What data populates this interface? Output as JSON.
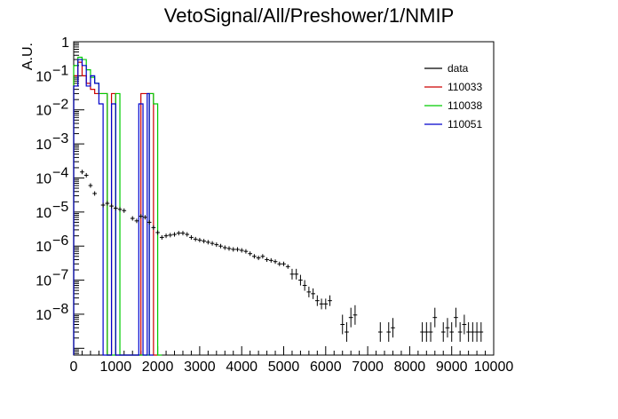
{
  "chart_data": {
    "type": "line",
    "title": "VetoSignal/All/Preshower/1/NMIP",
    "xlabel": "",
    "ylabel": "A.U.",
    "xlim": [
      0,
      10000
    ],
    "ylim_exponent": [
      -9.2,
      0
    ],
    "yscale": "log",
    "x_ticks": [
      "0",
      "1000",
      "2000",
      "3000",
      "4000",
      "5000",
      "6000",
      "7000",
      "8000",
      "9000",
      "10000"
    ],
    "y_ticks": [
      {
        "base": "1",
        "exp": ""
      },
      {
        "base": "10",
        "exp": "−1"
      },
      {
        "base": "10",
        "exp": "−2"
      },
      {
        "base": "10",
        "exp": "−3"
      },
      {
        "base": "10",
        "exp": "−4"
      },
      {
        "base": "10",
        "exp": "−5"
      },
      {
        "base": "10",
        "exp": "−6"
      },
      {
        "base": "10",
        "exp": "−7"
      },
      {
        "base": "10",
        "exp": "−8"
      }
    ],
    "legend": {
      "placement": "top-right",
      "entries": [
        {
          "name": "data",
          "color": "#000000"
        },
        {
          "name": "110033",
          "color": "#cc0000"
        },
        {
          "name": "110038",
          "color": "#00cc00"
        },
        {
          "name": "110051",
          "color": "#0000cc"
        }
      ]
    },
    "series": [
      {
        "name": "110033",
        "color": "#cc0000",
        "style": "step",
        "points": [
          [
            0,
            0.1
          ],
          [
            100,
            0.25
          ],
          [
            200,
            0.1
          ],
          [
            300,
            0.06
          ],
          [
            400,
            0.04
          ],
          [
            500,
            0.03
          ],
          [
            600,
            0.03
          ],
          [
            700,
            0.03
          ],
          [
            800,
            1e-10
          ],
          [
            900,
            0.03
          ],
          [
            1000,
            1e-10
          ],
          [
            1500,
            1e-10
          ],
          [
            1600,
            0.03
          ],
          [
            1700,
            0.03
          ],
          [
            1800,
            0.03
          ],
          [
            1900,
            1e-10
          ]
        ]
      },
      {
        "name": "110038",
        "color": "#00cc00",
        "style": "step",
        "points": [
          [
            0,
            0.2
          ],
          [
            100,
            0.35
          ],
          [
            200,
            0.3
          ],
          [
            300,
            0.15
          ],
          [
            400,
            0.09
          ],
          [
            500,
            0.06
          ],
          [
            600,
            0.03
          ],
          [
            700,
            0.03
          ],
          [
            800,
            1e-10
          ],
          [
            1000,
            0.03
          ],
          [
            1100,
            1e-10
          ],
          [
            1700,
            1e-10
          ],
          [
            1800,
            0.03
          ],
          [
            1900,
            0.015
          ],
          [
            2000,
            1e-10
          ]
        ]
      },
      {
        "name": "110051",
        "color": "#0000cc",
        "style": "step",
        "points": [
          [
            0,
            0.05
          ],
          [
            100,
            0.3
          ],
          [
            200,
            0.2
          ],
          [
            300,
            0.05
          ],
          [
            400,
            0.1
          ],
          [
            500,
            0.06
          ],
          [
            600,
            0.015
          ],
          [
            700,
            1e-10
          ],
          [
            900,
            0.015
          ],
          [
            1000,
            1e-10
          ],
          [
            1500,
            1e-10
          ],
          [
            1550,
            0.015
          ],
          [
            1650,
            1e-10
          ],
          [
            1750,
            0.03
          ],
          [
            1800,
            1e-10
          ]
        ]
      },
      {
        "name": "data",
        "color": "#000000",
        "style": "errorbar",
        "points": [
          [
            200,
            0.00015
          ],
          [
            300,
            0.00012
          ],
          [
            400,
            6e-05
          ],
          [
            500,
            3.5e-05
          ],
          [
            700,
            1.6e-05
          ],
          [
            800,
            1.8e-05
          ],
          [
            900,
            1.5e-05
          ],
          [
            1000,
            1.3e-05
          ],
          [
            1100,
            1.2e-05
          ],
          [
            1200,
            1.1e-05
          ],
          [
            1400,
            6.5e-06
          ],
          [
            1500,
            5.5e-06
          ],
          [
            1600,
            7.5e-06
          ],
          [
            1700,
            7e-06
          ],
          [
            1800,
            5e-06
          ],
          [
            1900,
            3.5e-06
          ],
          [
            2000,
            2.5e-06
          ],
          [
            2100,
            1.8e-06
          ],
          [
            2200,
            2e-06
          ],
          [
            2300,
            2.1e-06
          ],
          [
            2400,
            2.2e-06
          ],
          [
            2500,
            2.4e-06
          ],
          [
            2600,
            2.4e-06
          ],
          [
            2700,
            2.2e-06
          ],
          [
            2800,
            1.8e-06
          ],
          [
            2900,
            1.6e-06
          ],
          [
            3000,
            1.5e-06
          ],
          [
            3100,
            1.4e-06
          ],
          [
            3200,
            1.3e-06
          ],
          [
            3300,
            1.2e-06
          ],
          [
            3400,
            1.1e-06
          ],
          [
            3500,
            1e-06
          ],
          [
            3600,
            9e-07
          ],
          [
            3700,
            8.5e-07
          ],
          [
            3800,
            8e-07
          ],
          [
            3900,
            8e-07
          ],
          [
            4000,
            7.5e-07
          ],
          [
            4100,
            7e-07
          ],
          [
            4200,
            6e-07
          ],
          [
            4300,
            5e-07
          ],
          [
            4400,
            4.5e-07
          ],
          [
            4500,
            5e-07
          ],
          [
            4600,
            4e-07
          ],
          [
            4700,
            3.8e-07
          ],
          [
            4800,
            3.5e-07
          ],
          [
            4900,
            3e-07
          ],
          [
            5000,
            3e-07
          ],
          [
            5100,
            2.5e-07
          ],
          [
            5200,
            1.5e-07
          ],
          [
            5300,
            1.5e-07
          ],
          [
            5400,
            1e-07
          ],
          [
            5500,
            7e-08
          ],
          [
            5600,
            4.5e-08
          ],
          [
            5700,
            4e-08
          ],
          [
            5800,
            2.5e-08
          ],
          [
            5900,
            2e-08
          ],
          [
            6000,
            2e-08
          ],
          [
            6100,
            2.5e-08
          ],
          [
            6400,
            5e-09
          ],
          [
            6500,
            3e-09
          ],
          [
            6600,
            8e-09
          ],
          [
            6700,
            9.5e-09
          ],
          [
            7300,
            3e-09
          ],
          [
            7500,
            3e-09
          ],
          [
            7600,
            4e-09
          ],
          [
            8300,
            3e-09
          ],
          [
            8400,
            3e-09
          ],
          [
            8500,
            3e-09
          ],
          [
            8600,
            8e-09
          ],
          [
            8800,
            3e-09
          ],
          [
            8900,
            4e-09
          ],
          [
            9000,
            3e-09
          ],
          [
            9100,
            8e-09
          ],
          [
            9200,
            3e-09
          ],
          [
            9300,
            5e-09
          ],
          [
            9400,
            3e-09
          ],
          [
            9500,
            3e-09
          ],
          [
            9600,
            3e-09
          ],
          [
            9700,
            3e-09
          ]
        ]
      }
    ]
  }
}
